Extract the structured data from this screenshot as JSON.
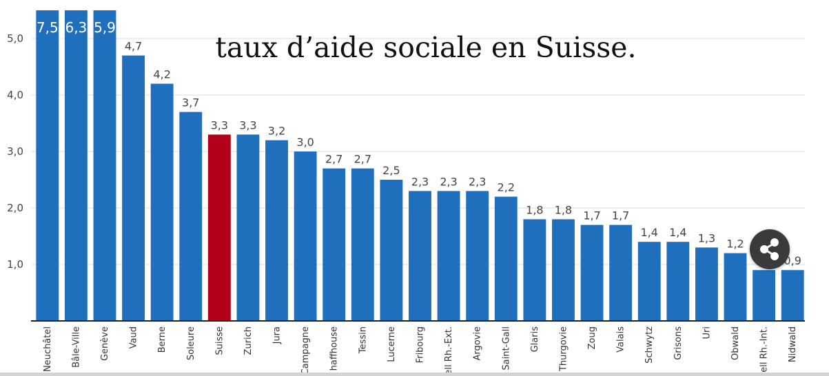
{
  "chart_data": {
    "type": "bar",
    "title": "taux d’aide sociale en Suisse.",
    "categories": [
      "Neuchâtel",
      "Bâle-Ville",
      "Genève",
      "Vaud",
      "Berne",
      "Soleure",
      "Suisse",
      "Zurich",
      "Jura",
      "Campagne",
      "haffhouse",
      "Tessin",
      "Lucerne",
      "Fribourg",
      "ell Rh.-Ext.",
      "Argovie",
      "Saint-Gall",
      "Glaris",
      "Thurgovie",
      "Zoug",
      "Valais",
      "Schwytz",
      "Grisons",
      "Uri",
      "Obwald",
      "ell Rh.-Int.",
      "Nidwald"
    ],
    "values": [
      7.5,
      6.3,
      5.9,
      4.7,
      4.2,
      3.7,
      3.3,
      3.3,
      3.2,
      3.0,
      2.7,
      2.7,
      2.5,
      2.3,
      2.3,
      2.3,
      2.2,
      1.8,
      1.8,
      1.7,
      1.7,
      1.4,
      1.4,
      1.3,
      1.2,
      0.9,
      0.9
    ],
    "value_labels": [
      "7,5",
      "6,3",
      "5,9",
      "4,7",
      "4,2",
      "3,7",
      "3,3",
      "3,3",
      "3,2",
      "3,0",
      "2,7",
      "2,7",
      "2,5",
      "2,3",
      "2,3",
      "2,3",
      "2,2",
      "1,8",
      "1,8",
      "1,7",
      "1,7",
      "1,4",
      "1,4",
      "1,3",
      "1,2",
      "",
      "0,9"
    ],
    "y_ticks": [
      1,
      2,
      3,
      4,
      5
    ],
    "y_tick_labels": [
      "1,0",
      "2,0",
      "3,0",
      "4,0",
      "5,0"
    ],
    "ylim": [
      0,
      5.5
    ],
    "highlight_category": "Suisse",
    "grid": true,
    "colors": {
      "bar": "#1f6fbd",
      "highlight": "#b3001b",
      "grid": "#dddddd",
      "axis": "#222222"
    }
  },
  "share_button": {
    "icon": "share-icon"
  }
}
